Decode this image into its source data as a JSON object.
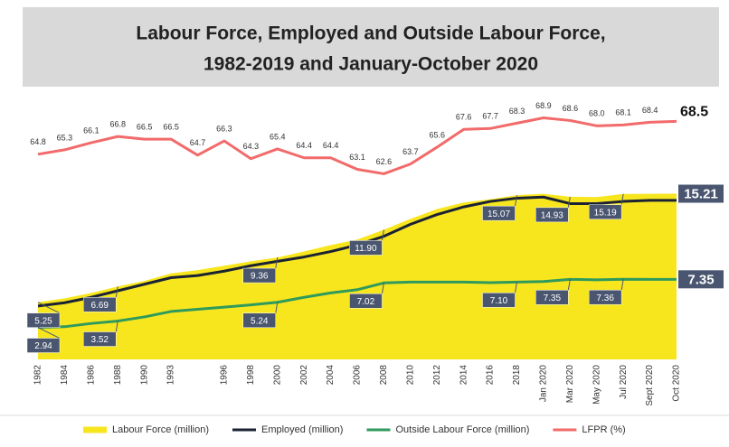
{
  "chart_data": {
    "type": "line",
    "title": [
      "Labour Force, Employed and Outside Labour Force,",
      "1982-2019 and January-October 2020"
    ],
    "categories": [
      "1982",
      "1984",
      "1986",
      "1988",
      "1990",
      "1993",
      null,
      "1996",
      "1998",
      "2000",
      "2002",
      "2004",
      "2006",
      "2008",
      "2010",
      "2012",
      "2014",
      "2016",
      "2018",
      "Jan 2020",
      "Mar 2020",
      "May 2020",
      "Jul 2020",
      "Sept 2020",
      "Oct 2020"
    ],
    "ylim": [
      0,
      24.7
    ],
    "y2lim": [
      41.7,
      72
    ],
    "legend": "bottom",
    "series": [
      {
        "name": "Labour Force (million)",
        "color": "#f7e61e",
        "kind": "area",
        "values": [
          5.25,
          5.6,
          6.1,
          6.69,
          7.2,
          7.9,
          8.2,
          8.6,
          9.0,
          9.36,
          9.9,
          10.5,
          11.0,
          11.9,
          12.9,
          13.8,
          14.4,
          14.7,
          15.07,
          15.2,
          14.93,
          14.9,
          15.19,
          15.2,
          15.21
        ],
        "value_labels": [
          "5.25",
          null,
          null,
          "6.69",
          null,
          null,
          null,
          null,
          null,
          "9.36",
          null,
          null,
          null,
          "11.90",
          null,
          null,
          null,
          null,
          "15.07",
          null,
          "14.93",
          null,
          "15.19",
          null,
          "15.21"
        ]
      },
      {
        "name": "Employed (million)",
        "color": "#1b2233",
        "kind": "line",
        "values": [
          4.9,
          5.2,
          5.7,
          6.3,
          6.9,
          7.5,
          7.7,
          8.1,
          8.6,
          9.0,
          9.4,
          9.9,
          10.5,
          11.3,
          12.4,
          13.3,
          14.0,
          14.5,
          14.8,
          14.9,
          14.3,
          14.3,
          14.5,
          14.6,
          14.6
        ]
      },
      {
        "name": "Outside Labour Force (million)",
        "color": "#2f9a5b",
        "kind": "line",
        "values": [
          2.94,
          3.0,
          3.3,
          3.52,
          3.9,
          4.4,
          4.6,
          4.8,
          5.0,
          5.24,
          5.7,
          6.1,
          6.4,
          7.02,
          7.1,
          7.1,
          7.1,
          7.05,
          7.1,
          7.15,
          7.35,
          7.3,
          7.36,
          7.35,
          7.35
        ],
        "value_labels": [
          "2.94",
          null,
          null,
          "3.52",
          null,
          null,
          null,
          null,
          null,
          "5.24",
          null,
          null,
          null,
          "7.02",
          null,
          null,
          null,
          null,
          "7.10",
          null,
          "7.35",
          null,
          "7.36",
          null,
          "7.35"
        ]
      },
      {
        "name": "LFPR (%)",
        "color": "#f26a6a",
        "kind": "line",
        "axis": "y2",
        "values": [
          64.8,
          65.3,
          66.1,
          66.8,
          66.5,
          66.5,
          64.7,
          66.3,
          64.3,
          65.4,
          64.4,
          64.4,
          63.1,
          62.6,
          63.7,
          65.6,
          67.6,
          67.7,
          68.3,
          68.9,
          68.6,
          68.0,
          68.1,
          68.4,
          68.5
        ],
        "value_labels": [
          "64.8",
          "65.3",
          "66.1",
          "66.8",
          "66.5",
          "66.5",
          "64.7",
          "66.3",
          "64.3",
          "65.4",
          "64.4",
          "64.4",
          "63.1",
          "62.6",
          "63.7",
          "65.6",
          "67.6",
          "67.7",
          "68.3",
          "68.9",
          "68.6",
          "68.0",
          "68.1",
          "68.4",
          "68.5"
        ]
      }
    ]
  }
}
